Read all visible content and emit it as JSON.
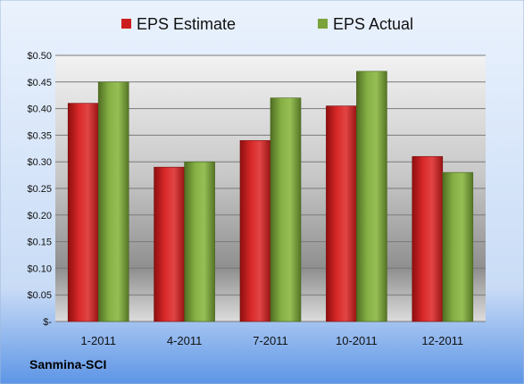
{
  "footer": {
    "company": "Sanmina-SCI"
  },
  "colors": {
    "estimate_fill": "#cc1e1e",
    "actual_fill": "#7aa33a",
    "background_top": "#eaf2fd",
    "background_bottom": "#5d95e6"
  },
  "chart_data": {
    "type": "bar",
    "categories": [
      "1-2011",
      "4-2011",
      "7-2011",
      "10-2011",
      "12-2011"
    ],
    "series": [
      {
        "name": "EPS Estimate",
        "values": [
          0.41,
          0.29,
          0.34,
          0.405,
          0.31
        ]
      },
      {
        "name": "EPS Actual",
        "values": [
          0.45,
          0.3,
          0.42,
          0.47,
          0.28
        ]
      }
    ],
    "yticks": [
      "$-",
      "$0.05",
      "$0.10",
      "$0.15",
      "$0.20",
      "$0.25",
      "$0.30",
      "$0.35",
      "$0.40",
      "$0.45",
      "$0.50"
    ],
    "ylim": [
      0,
      0.5
    ],
    "grid": true,
    "legend": "top"
  }
}
